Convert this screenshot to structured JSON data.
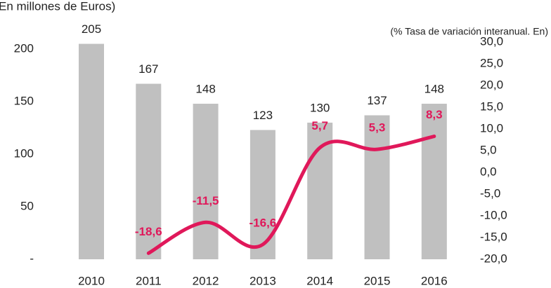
{
  "chart_data": {
    "type": "bar-line",
    "title": "En millones de Euros)",
    "subtitle": "(% Tasa de variación interanual. En)",
    "categories": [
      "2010",
      "2011",
      "2012",
      "2013",
      "2014",
      "2015",
      "2016"
    ],
    "series": [
      {
        "name": "Millones de Euros",
        "type": "bar",
        "color": "#c0c0c0",
        "values": [
          205,
          167,
          148,
          123,
          130,
          137,
          148
        ]
      },
      {
        "name": "Tasa de variación interanual",
        "type": "line",
        "axis": "y2",
        "color": "#e0185a",
        "values": [
          null,
          -18.6,
          -11.5,
          -16.6,
          5.7,
          5.3,
          8.3
        ],
        "value_labels": [
          null,
          "-18,6",
          "-11,5",
          "-16,6",
          "5,7",
          "5,3",
          "8,3"
        ]
      }
    ],
    "ylim": [
      0,
      206.7
    ],
    "yticks": [
      {
        "value": 0,
        "label": "-"
      },
      50,
      100,
      150,
      200
    ],
    "y2lim": [
      -20,
      30
    ],
    "y2ticks": [
      {
        "value": -20,
        "label": "-20,0"
      },
      {
        "value": -15,
        "label": "-15,0"
      },
      {
        "value": -10,
        "label": "-10,0"
      },
      {
        "value": -5,
        "label": "-5,0"
      },
      {
        "value": 0,
        "label": "0,0"
      },
      {
        "value": 5,
        "label": "5,0"
      },
      {
        "value": 10,
        "label": "10,0"
      },
      {
        "value": 15,
        "label": "15,0"
      },
      {
        "value": 20,
        "label": "20,0"
      },
      {
        "value": 25,
        "label": "25,0"
      },
      {
        "value": 30,
        "label": "30,0"
      }
    ]
  }
}
